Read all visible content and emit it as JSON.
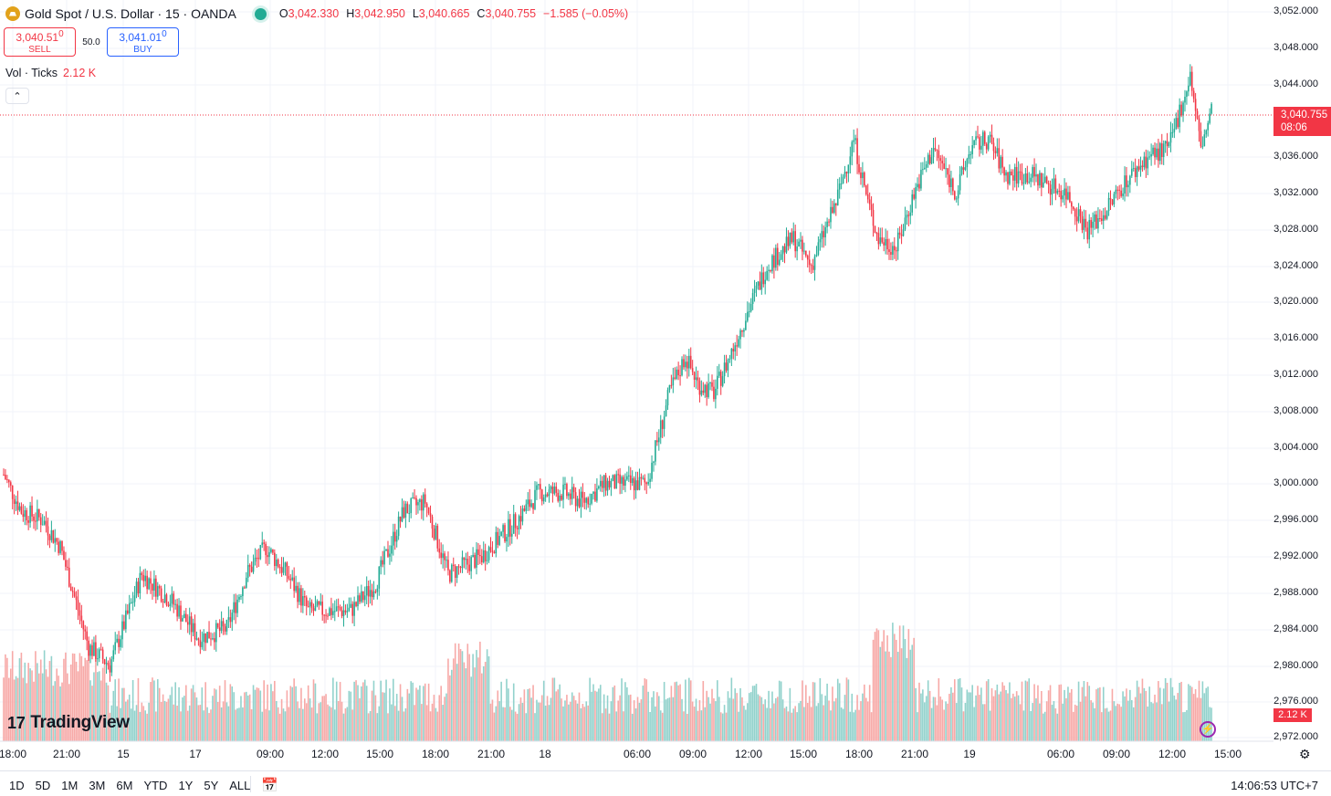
{
  "header": {
    "symbol_title": "Gold Spot / U.S. Dollar · 15 · OANDA",
    "ohlc": [
      {
        "k": "O",
        "v": "3,042.330"
      },
      {
        "k": "H",
        "v": "3,042.950"
      },
      {
        "k": "L",
        "v": "3,040.665"
      },
      {
        "k": "C",
        "v": "3,040.755"
      }
    ],
    "change": "−1.585 (−0.05%)"
  },
  "trade": {
    "sell_price": "3,040.51",
    "sell_sup": "0",
    "sell_label": "SELL",
    "spread": "50.0",
    "buy_price": "3,041.01",
    "buy_sup": "0",
    "buy_label": "BUY"
  },
  "volume_indicator": {
    "name": "Vol · Ticks",
    "value": "2.12 K"
  },
  "collapse_icon": "chevron-up-icon",
  "y_axis_labels": [
    "3,052.000",
    "3,048.000",
    "3,044.000",
    "3,036.000",
    "3,032.000",
    "3,028.000",
    "3,024.000",
    "3,020.000",
    "3,016.000",
    "3,012.000",
    "3,008.000",
    "3,004.000",
    "3,000.000",
    "2,996.000",
    "2,992.000",
    "2,988.000",
    "2,984.000",
    "2,980.000",
    "2,976.000",
    "2,972.000"
  ],
  "x_axis_labels": [
    "18:00",
    "21:00",
    "15",
    "17",
    "09:00",
    "12:00",
    "15:00",
    "18:00",
    "21:00",
    "18",
    "06:00",
    "09:00",
    "12:00",
    "15:00",
    "18:00",
    "21:00",
    "19",
    "06:00",
    "09:00",
    "12:00",
    "15:00"
  ],
  "price_tag": {
    "price": "3,040.755",
    "countdown": "08:06"
  },
  "volume_tag": "2.12 K",
  "brand": "TradingView",
  "bottom_bar": {
    "ranges": [
      "1D",
      "5D",
      "1M",
      "3M",
      "6M",
      "YTD",
      "1Y",
      "5Y",
      "ALL"
    ],
    "clock": "14:06:53 UTC+7"
  },
  "colors": {
    "up": "#22ab94",
    "down": "#f23645",
    "up_vol": "#92d2cc",
    "down_vol": "#f7a9a7",
    "grid": "#f0f3fa"
  },
  "chart_data": {
    "type": "candlestick",
    "symbol": "XAUUSD",
    "timeframe": "15",
    "ylim": [
      2971,
      3053
    ],
    "anchors": [
      [
        0,
        3001
      ],
      [
        10,
        2997
      ],
      [
        22,
        2996
      ],
      [
        32,
        2993
      ],
      [
        48,
        2982
      ],
      [
        60,
        2980
      ],
      [
        78,
        2990
      ],
      [
        95,
        2987
      ],
      [
        110,
        2983
      ],
      [
        126,
        2984
      ],
      [
        137,
        2990
      ],
      [
        148,
        2993
      ],
      [
        160,
        2990
      ],
      [
        172,
        2986
      ],
      [
        186,
        2986
      ],
      [
        196,
        2986
      ],
      [
        210,
        2989
      ],
      [
        226,
        2997
      ],
      [
        238,
        2998
      ],
      [
        251,
        2990
      ],
      [
        270,
        2992
      ],
      [
        290,
        2996
      ],
      [
        302,
        2999
      ],
      [
        316,
        2999
      ],
      [
        327,
        2998
      ],
      [
        340,
        3000
      ],
      [
        350,
        3000
      ],
      [
        363,
        3000
      ],
      [
        376,
        3010
      ],
      [
        385,
        3014
      ],
      [
        392,
        3011
      ],
      [
        401,
        3010
      ],
      [
        410,
        3014
      ],
      [
        418,
        3018
      ],
      [
        431,
        3024
      ],
      [
        446,
        3027
      ],
      [
        456,
        3024
      ],
      [
        470,
        3031
      ],
      [
        480,
        3038
      ],
      [
        488,
        3031
      ],
      [
        494,
        3027
      ],
      [
        504,
        3026
      ],
      [
        514,
        3032
      ],
      [
        525,
        3037
      ],
      [
        538,
        3032
      ],
      [
        546,
        3037
      ],
      [
        556,
        3038
      ],
      [
        566,
        3034
      ],
      [
        580,
        3034
      ],
      [
        590,
        3033
      ],
      [
        600,
        3032
      ],
      [
        612,
        3028
      ],
      [
        622,
        3030
      ],
      [
        632,
        3033
      ],
      [
        646,
        3036
      ],
      [
        658,
        3037
      ],
      [
        664,
        3041
      ],
      [
        670,
        3045
      ],
      [
        676,
        3037
      ],
      [
        682,
        3041
      ]
    ]
  }
}
